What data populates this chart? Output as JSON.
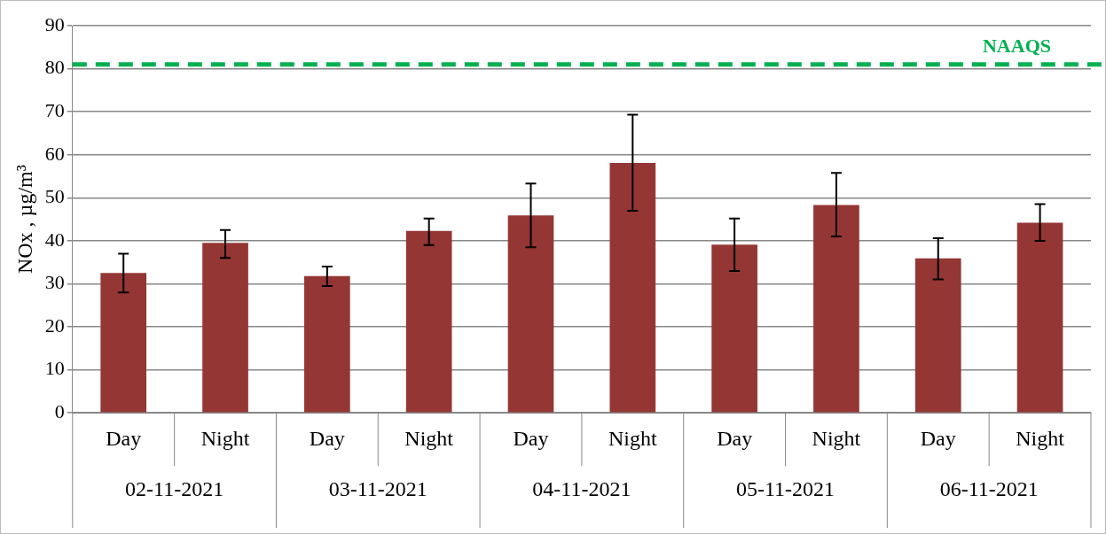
{
  "chart_data": {
    "type": "bar",
    "ylabel": "NOx , µg/m³",
    "categories": [
      "Day",
      "Night",
      "Day",
      "Night",
      "Day",
      "Night",
      "Day",
      "Night",
      "Day",
      "Night"
    ],
    "values": [
      32.5,
      39.5,
      31.8,
      42.3,
      45.9,
      58.1,
      39.1,
      48.3,
      35.9,
      44.2
    ],
    "errors": [
      [
        28,
        37
      ],
      [
        36,
        42.5
      ],
      [
        29.5,
        34
      ],
      [
        39,
        45.2
      ],
      [
        38.5,
        53.3
      ],
      [
        47,
        69.3
      ],
      [
        33,
        45.2
      ],
      [
        41,
        55.8
      ],
      [
        31,
        40.6
      ],
      [
        40,
        48.5
      ]
    ],
    "color": "#943634",
    "ylim": [
      0,
      90
    ],
    "yticks": [
      0,
      10,
      20,
      30,
      40,
      50,
      60,
      70,
      80,
      90
    ],
    "grid": "y",
    "ref_lines": [
      {
        "axis": "y",
        "value": 81,
        "label": "NAAQS",
        "color": "#00b050",
        "line_style": "dashed"
      }
    ],
    "annotations": [
      "02-11-2021",
      "03-11-2021",
      "04-11-2021",
      "05-11-2021",
      "06-11-2021"
    ],
    "legend": false
  }
}
